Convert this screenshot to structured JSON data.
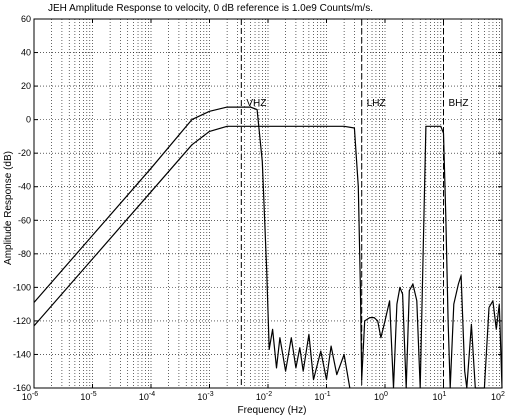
{
  "chart_data": {
    "type": "line",
    "title": "JEH Amplitude Response to velocity, 0 dB reference is 1.0e9 Counts/m/s.",
    "xlabel": "Frequency (Hz)",
    "ylabel": "Amplitude Response (dB)",
    "x_scale": "log",
    "xlim": [
      1e-06,
      100
    ],
    "ylim": [
      -160,
      60
    ],
    "grid": true,
    "x_ticks": [
      {
        "value": 1e-06,
        "base": "10",
        "exp": "-6"
      },
      {
        "value": 1e-05,
        "base": "10",
        "exp": "-5"
      },
      {
        "value": 0.0001,
        "base": "10",
        "exp": "-4"
      },
      {
        "value": 0.001,
        "base": "10",
        "exp": "-3"
      },
      {
        "value": 0.01,
        "base": "10",
        "exp": "-2"
      },
      {
        "value": 0.1,
        "base": "10",
        "exp": "-1"
      },
      {
        "value": 1,
        "base": "10",
        "exp": "0"
      },
      {
        "value": 10,
        "base": "10",
        "exp": "1"
      },
      {
        "value": 100,
        "base": "10",
        "exp": "2"
      }
    ],
    "y_ticks": [
      {
        "value": 60,
        "label": "60"
      },
      {
        "value": 40,
        "label": "40"
      },
      {
        "value": 20,
        "label": "20"
      },
      {
        "value": 0,
        "label": "0"
      },
      {
        "value": -20,
        "label": "-20"
      },
      {
        "value": -40,
        "label": "-40"
      },
      {
        "value": -60,
        "label": "-60"
      },
      {
        "value": -80,
        "label": "-80"
      },
      {
        "value": -100,
        "label": "-100"
      },
      {
        "value": -120,
        "label": "-120"
      },
      {
        "value": -140,
        "label": "-140"
      },
      {
        "value": -160,
        "label": "-160"
      }
    ],
    "band_markers": [
      {
        "label": "VHZ",
        "x": 0.0035
      },
      {
        "label": "LHZ",
        "x": 0.4
      },
      {
        "label": "BHZ",
        "x": 10
      }
    ],
    "series": [
      {
        "points": [
          [
            1e-06,
            -109
          ],
          [
            1e-05,
            -69
          ],
          [
            0.0001,
            -29
          ],
          [
            0.0005,
            0
          ],
          [
            0.001,
            5
          ],
          [
            0.002,
            7.5
          ],
          [
            0.005,
            7.5
          ],
          [
            0.0065,
            6
          ],
          [
            0.008,
            -25
          ],
          [
            0.0095,
            -90
          ],
          [
            0.0105,
            -137
          ],
          [
            0.012,
            -125
          ],
          [
            0.014,
            -148
          ],
          [
            0.016,
            -130
          ],
          [
            0.02,
            -150
          ],
          [
            0.025,
            -130
          ],
          [
            0.03,
            -148
          ],
          [
            0.035,
            -136
          ],
          [
            0.04,
            -150
          ],
          [
            0.05,
            -128
          ],
          [
            0.06,
            -155
          ],
          [
            0.08,
            -138
          ],
          [
            0.1,
            -155
          ],
          [
            0.12,
            -135
          ],
          [
            0.15,
            -152
          ],
          [
            0.2,
            -140
          ],
          [
            0.25,
            -160
          ]
        ]
      },
      {
        "points": [
          [
            1e-06,
            -123
          ],
          [
            1e-05,
            -83
          ],
          [
            0.0001,
            -43
          ],
          [
            0.0005,
            -15
          ],
          [
            0.001,
            -7
          ],
          [
            0.002,
            -4
          ],
          [
            0.005,
            -4
          ],
          [
            0.01,
            -4
          ],
          [
            0.05,
            -4
          ],
          [
            0.1,
            -4
          ],
          [
            0.2,
            -4
          ],
          [
            0.3,
            -5
          ],
          [
            0.35,
            -40
          ],
          [
            0.38,
            -100
          ],
          [
            0.4,
            -155
          ],
          [
            0.45,
            -120
          ],
          [
            0.55,
            -118
          ],
          [
            0.65,
            -118
          ],
          [
            0.75,
            -120
          ],
          [
            0.85,
            -130
          ],
          [
            1,
            -120
          ],
          [
            1.2,
            -108
          ],
          [
            1.4,
            -160
          ],
          [
            1.6,
            -110
          ],
          [
            1.8,
            -100
          ],
          [
            2,
            -104
          ],
          [
            2.3,
            -160
          ],
          [
            2.6,
            -102
          ],
          [
            3,
            -98
          ],
          [
            3.5,
            -108
          ],
          [
            4,
            -160
          ],
          [
            5,
            -4
          ],
          [
            7,
            -4
          ],
          [
            9,
            -4
          ],
          [
            10,
            -8
          ],
          [
            11,
            -60
          ],
          [
            12,
            -120
          ],
          [
            13,
            -160
          ],
          [
            15,
            -110
          ],
          [
            18,
            -98
          ],
          [
            20,
            -93
          ],
          [
            23,
            -150
          ],
          [
            25,
            -160
          ],
          [
            30,
            -122
          ],
          [
            35,
            -160
          ],
          [
            50,
            -160
          ],
          [
            60,
            -112
          ],
          [
            70,
            -108
          ],
          [
            80,
            -125
          ],
          [
            90,
            -110
          ],
          [
            100,
            -160
          ]
        ]
      }
    ]
  }
}
